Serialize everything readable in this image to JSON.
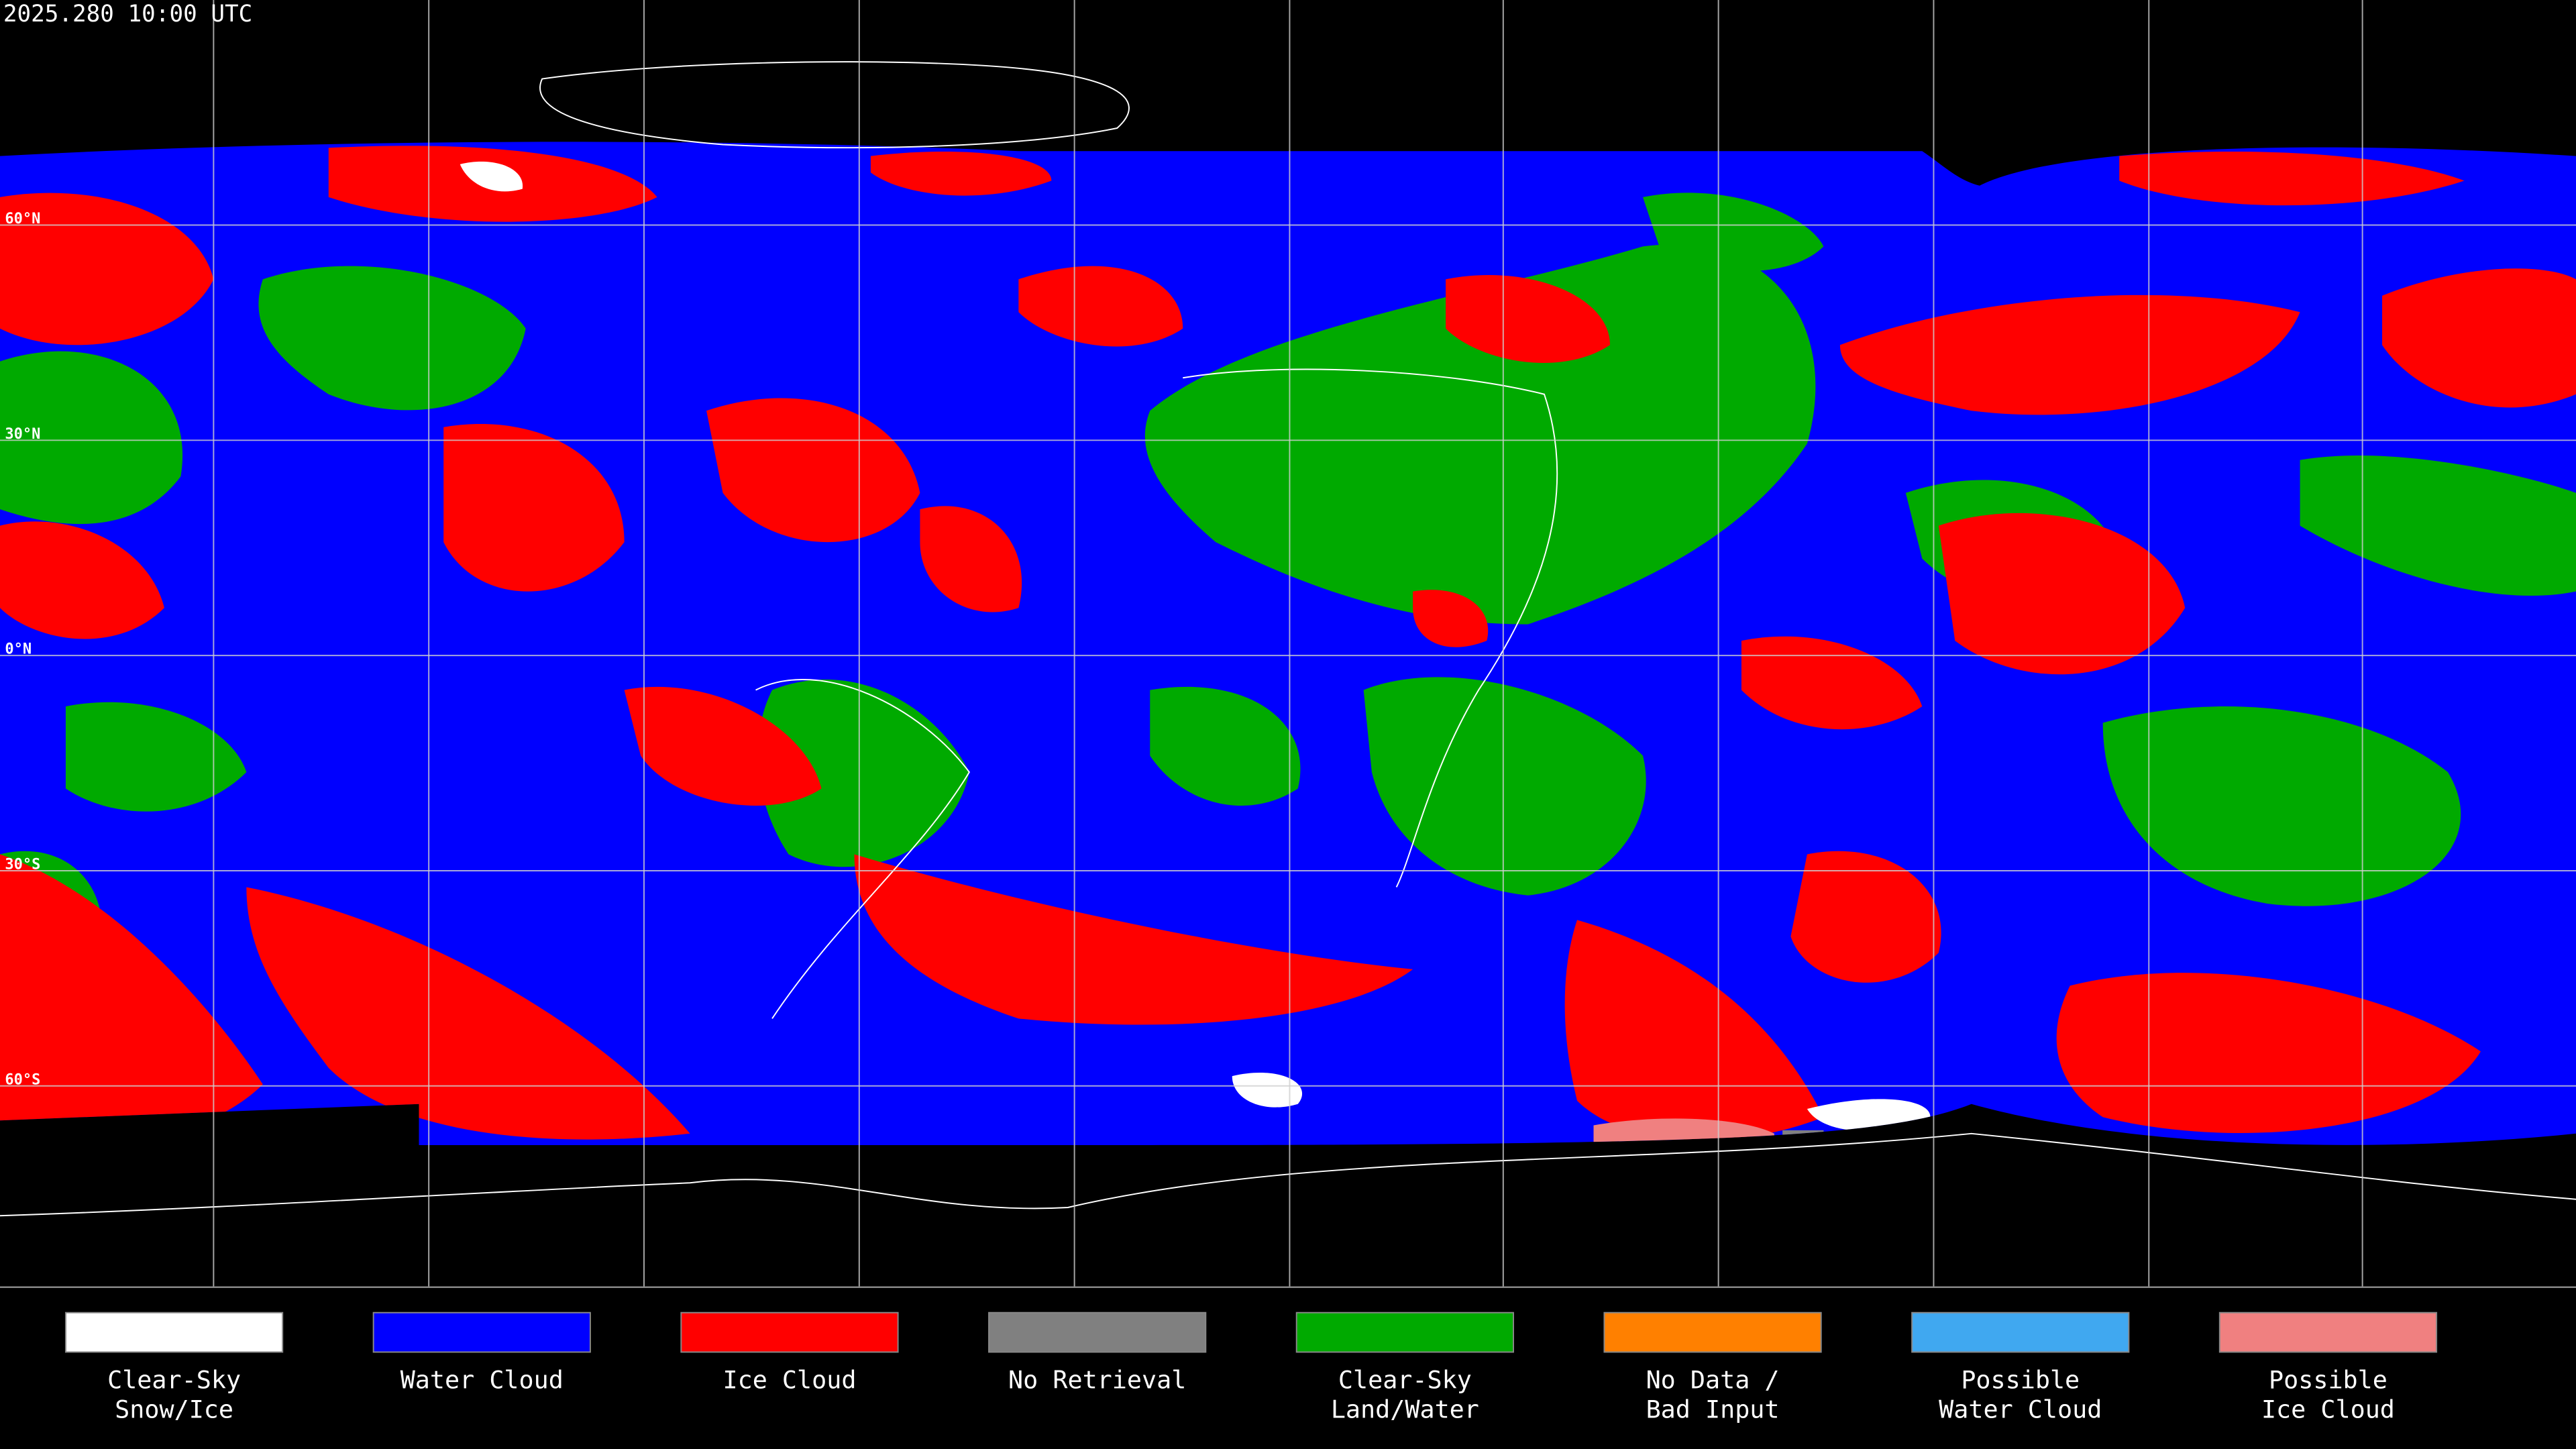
{
  "header": {
    "title": "2025.280 10:00 UTC"
  },
  "map": {
    "latitude_labels": [
      "60°N",
      "30°N",
      "0°N",
      "30°S",
      "60°S"
    ]
  },
  "legend": [
    {
      "label": [
        "Clear-Sky",
        "Snow/Ice"
      ],
      "color": "#ffffff"
    },
    {
      "label": [
        "Water Cloud"
      ],
      "color": "#0000ff"
    },
    {
      "label": [
        "Ice Cloud"
      ],
      "color": "#ff0000"
    },
    {
      "label": [
        "No Retrieval"
      ],
      "color": "#808080"
    },
    {
      "label": [
        "Clear-Sky",
        "Land/Water"
      ],
      "color": "#00aa00"
    },
    {
      "label": [
        "No Data /",
        "Bad Input"
      ],
      "color": "#ff8000"
    },
    {
      "label": [
        "Possible",
        "Water Cloud"
      ],
      "color": "#40a8f0"
    },
    {
      "label": [
        "Possible",
        "Ice Cloud"
      ],
      "color": "#f08080"
    }
  ]
}
